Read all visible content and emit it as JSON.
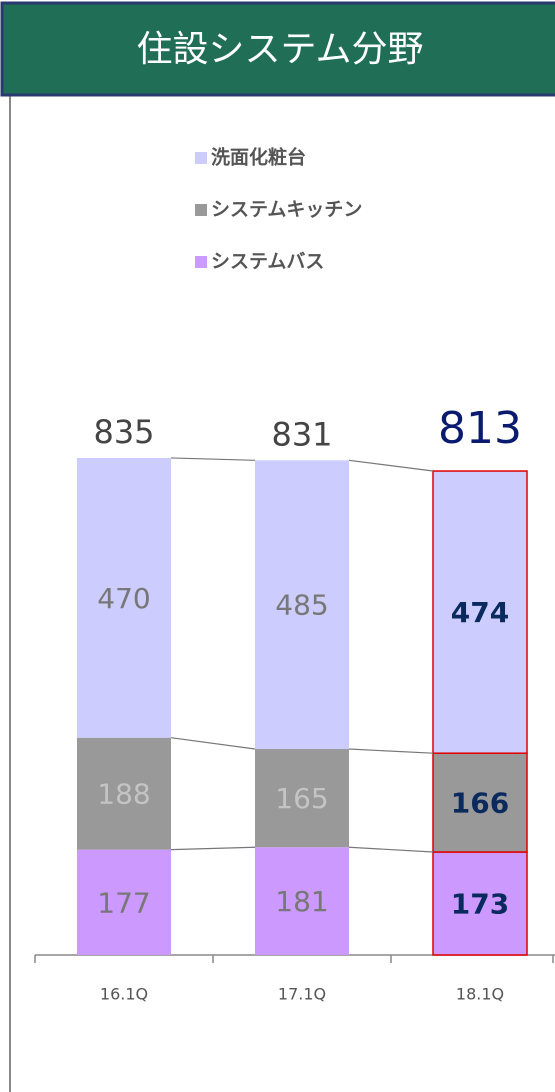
{
  "chart_data": {
    "type": "stacked_bar",
    "title": "住設システム分野",
    "categories": [
      "16.1Q",
      "17.1Q",
      "18.1Q"
    ],
    "series": [
      {
        "name": "システムバス",
        "color": "#cc99ff",
        "values": [
          177,
          181,
          173
        ]
      },
      {
        "name": "システムキッチン",
        "color": "#999999",
        "values": [
          188,
          165,
          166
        ]
      },
      {
        "name": "洗面化粧台",
        "color": "#ccccff",
        "values": [
          470,
          485,
          474
        ]
      }
    ],
    "totals": [
      835,
      831,
      813
    ],
    "ylim": [
      0,
      850
    ],
    "highlight": 2
  }
}
